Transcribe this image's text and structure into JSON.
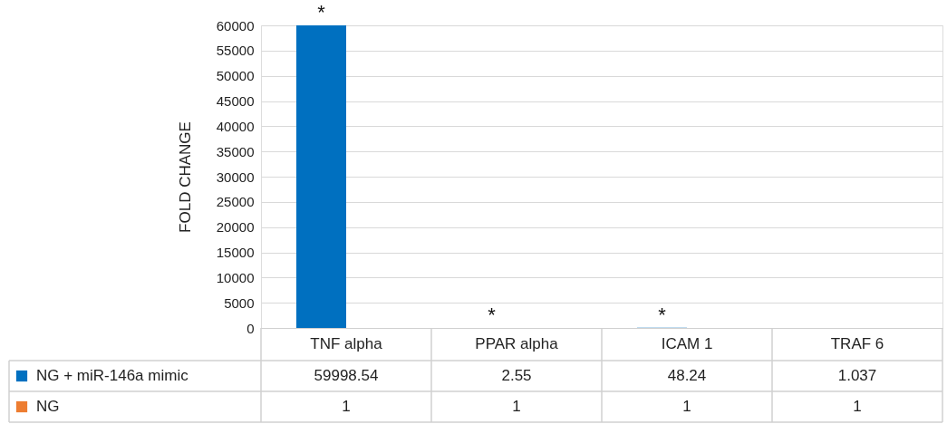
{
  "chart_data": {
    "type": "bar",
    "ylabel": "FOLD CHANGE",
    "categories": [
      "TNF alpha",
      "PPAR alpha",
      "ICAM 1",
      "TRAF 6"
    ],
    "series": [
      {
        "name": "NG + miR-146a mimic",
        "color": "#0070c0",
        "values": [
          59998.54,
          2.55,
          48.24,
          1.037
        ]
      },
      {
        "name": "NG",
        "color": "#ed7d31",
        "values": [
          1,
          1,
          1,
          1
        ]
      }
    ],
    "ylim": [
      0,
      60000
    ],
    "yticks": [
      0,
      5000,
      10000,
      15000,
      20000,
      25000,
      30000,
      35000,
      40000,
      45000,
      50000,
      55000,
      60000
    ],
    "grid": "y",
    "legend": "bottom",
    "data_labels": true,
    "annotations": [
      {
        "text": "*",
        "x": "TNF alpha",
        "y": 59998.54
      },
      {
        "text": "*",
        "x": "PPAR alpha",
        "y": 2.55
      },
      {
        "text": "*",
        "x": "ICAM 1",
        "y": 48.24
      }
    ]
  }
}
